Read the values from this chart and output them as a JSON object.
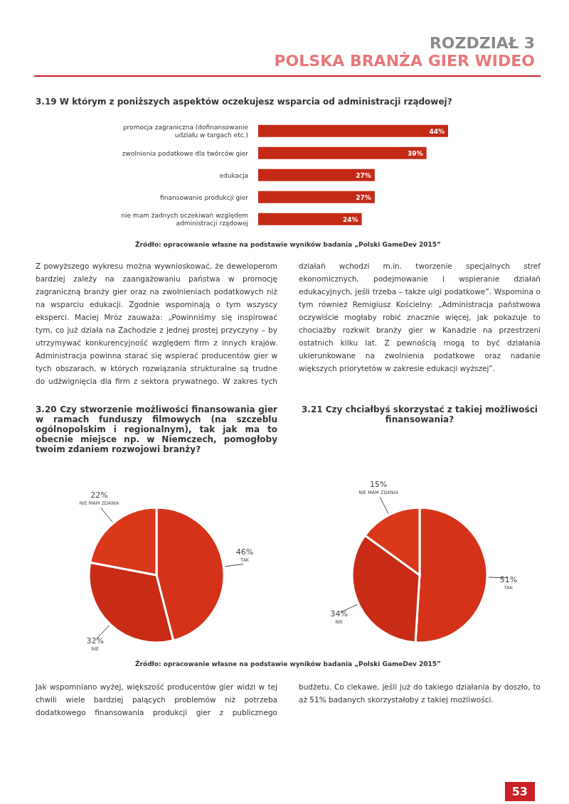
{
  "chart_data": [
    {
      "type": "bar",
      "orientation": "horizontal",
      "title": "3.19 W którym z poniższych aspektów oczekujesz wsparcia od administracji rządowej?",
      "categories": [
        "promocja zagraniczna (dofinansowanie udziału w targach etc.)",
        "zwolnienia podatkowe dla twórców gier",
        "edukacja",
        "finansowanie produkcji gier",
        "nie mam żadnych oczekiwań względem administracji rządowej"
      ],
      "values": [
        44,
        39,
        27,
        27,
        24
      ],
      "value_labels": [
        "44%",
        "39%",
        "27%",
        "27%",
        "24%"
      ],
      "color": "#c42a16",
      "legend": false,
      "grid": false,
      "annotations": [
        "ROZDZIAŁ 3",
        "POLSKA BRANŻA GIER WIDEO",
        "Źródło: opracowanie własne na podstawie wyników badania „Polski GameDev 2015”",
        "Z powyższego wykresu można wywnioskować, że deweloperom bardziej zależy na zaangażowaniu państwa w promocję zagraniczną branży gier oraz na zwolnieniach podatkowych niż na wsparciu edukacji. Zgodnie wspominają o tym wszyscy eksperci. Maciej Mróz zauważa: „Powinniśmy się inspirować tym, co już działa na Zachodzie z jednej prostej przyczyny – by utrzymywać konkurencyjność względem firm z innych krajów. Administracja powinna starać się wspierać producentów gier w tych obszarach, w których rozwiązania strukturalne są trudne do udźwignięcia dla firm z sektora prywatnego. W zakres tych działań wchodzi m.in. tworzenie specjalnych stref ekonomicznych, podejmowanie i wspieranie działań edukacyjnych, jeśli trzeba – także ulgi podatkowe”. Wspomina o tym również Remigiusz Kościelny: „Administracja państwowa oczywiście mogłaby robić znacznie więcej, jak pokazuje to chociażby rozkwit branży gier w Kanadzie na przestrzeni ostatnich kilku lat. Z pewnością mogą to być działania ukierunkowane na zwolnienia podatkowe oraz nadanie większych priorytetów w zakresie edukacji wyższej”."
      ]
    },
    {
      "type": "pie",
      "title": "3.20 Czy stworzenie możliwości finansowania gier w ramach funduszy filmowych (na szczeblu ogólnopolskim i regionalnym), tak jak ma to obecnie miejsce np. w Niemczech, pomogłoby twoim zdaniem rozwojowi branży?",
      "categories": [
        "TAK",
        "NIE",
        "NIE MAM ZDANIA"
      ],
      "values": [
        46,
        32,
        22
      ],
      "value_labels": [
        "46%",
        "32%",
        "22%"
      ],
      "colors": [
        "#d5321a",
        "#c82c16",
        "#d9381b"
      ],
      "legend": false
    },
    {
      "type": "pie",
      "title": "3.21 Czy chciałbyś skorzystać z takiej możliwości finansowania?",
      "categories": [
        "TAK",
        "NIE",
        "NIE MAM ZDANIA"
      ],
      "values": [
        51,
        34,
        15
      ],
      "value_labels": [
        "51%",
        "34%",
        "15%"
      ],
      "colors": [
        "#d5321a",
        "#c82c16",
        "#d9381b"
      ],
      "legend": false,
      "annotations": [
        "Źródło: opracowanie własne na podstawie wyników badania „Polski GameDev 2015”",
        "Jak wspomniano wyżej, większość producentów gier widzi w tej chwili wiele bardziej palących problemów niż potrzeba dodatkowego finansowania produkcji gier z publicznego budżetu. Co ciekawe, jeśli już do takiego działania by doszło, to aż 51% badanych skorzystałoby z takiej możliwości.",
        "53"
      ]
    }
  ]
}
